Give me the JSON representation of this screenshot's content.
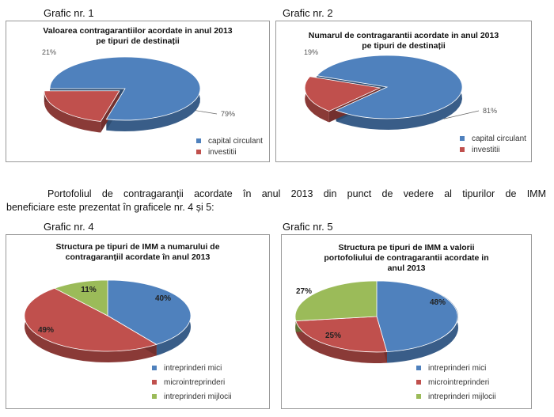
{
  "figure_labels": [
    "Grafic nr. 1",
    "Grafic nr. 2",
    "Grafic nr. 4",
    "Grafic nr. 5"
  ],
  "paragraph": {
    "line1": "Portofoliul de contragaranţii acordate în anul 2013 din punct de vedere al tipurilor de IMM",
    "line2": "beneficiare este prezentat în graficele nr. 4 și 5:"
  },
  "colors": {
    "blue": "#4f81bd",
    "red": "#c0504d",
    "green": "#9bbb59"
  },
  "chart_data": [
    {
      "type": "pie",
      "title": "Valoarea contragarantiilor acordate in anul 2013  pe tipuri de destinații",
      "categories": [
        "capital circulant",
        "investitii"
      ],
      "values": [
        79,
        21
      ],
      "data_labels": [
        "79%",
        "21%"
      ],
      "legend": "bottom-right"
    },
    {
      "type": "pie",
      "title": "Numarul de contragarantii acordate in anul  2013  pe tipuri de destinații",
      "categories": [
        "capital circulant",
        "investitii"
      ],
      "values": [
        81,
        19
      ],
      "data_labels": [
        "81%",
        "19%"
      ],
      "legend": "bottom-right"
    },
    {
      "type": "pie",
      "title": "Structura pe tipuri de IMM a numarului de contragaranţiil acordate în anul 2013",
      "categories": [
        "intreprinderi mici",
        "microintreprinderi",
        "intreprinderi mijlocii"
      ],
      "values": [
        40,
        49,
        11
      ],
      "data_labels": [
        "40%",
        "49%",
        "11%"
      ],
      "legend": "bottom"
    },
    {
      "type": "pie",
      "title": "Structura pe tipuri de IMM a valorii portofoliului de contragarantii  acordate  in anul 2013",
      "categories": [
        "intreprinderi mici",
        "microintreprinderi",
        "intreprinderi mijlocii"
      ],
      "values": [
        48,
        25,
        27
      ],
      "data_labels": [
        "48%",
        "25%",
        "27%"
      ],
      "legend": "bottom"
    }
  ]
}
